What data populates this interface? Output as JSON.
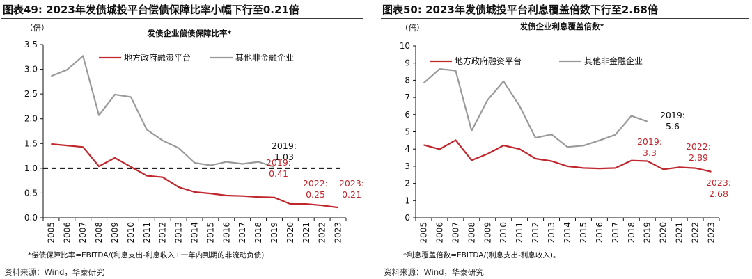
{
  "left_panel": {
    "figure_title": "图表49:  2023年发债城投平台偿债保障比率小幅下行至0.21倍",
    "footnote": "*偿债保障比率=EBITDA/(利息支出-利息收入+一年内到期的非流动负债)",
    "source": "资料来源：Wind，华泰研究"
  },
  "right_panel": {
    "figure_title": "图表50:  2023年发债城投平台利息覆盖倍数下行至2.68倍",
    "footnote": "*利息覆盖倍数=EBITDA/(利息支出-利息收入)。",
    "source": "资料来源：Wind，华泰研究"
  },
  "colors": {
    "red": "#c0272d",
    "gray": "#9a9a9a",
    "axis": "#111111",
    "dashed": "#000000"
  },
  "chart_data": [
    {
      "type": "line",
      "title": "发债企业偿债保障比率*",
      "unit_label": "（倍）",
      "x": [
        "2005",
        "2006",
        "2007",
        "2008",
        "2009",
        "2010",
        "2011",
        "2012",
        "2013",
        "2014",
        "2015",
        "2016",
        "2017",
        "2018",
        "2019",
        "2020",
        "2021",
        "2022",
        "2023"
      ],
      "ylim": [
        0,
        3.5
      ],
      "yticks": [
        0,
        0.5,
        1.0,
        1.5,
        2.0,
        2.5,
        3.0,
        3.5
      ],
      "ytick_labels": [
        "0.0",
        "0.5",
        "1.0",
        "1.5",
        "2.0",
        "2.5",
        "3.0",
        "3.5"
      ],
      "grid": false,
      "legend_position": "top",
      "series": [
        {
          "name": "地方政府融资平台",
          "color": "#c0272d",
          "values": [
            1.49,
            1.46,
            1.43,
            1.04,
            1.21,
            1.03,
            0.85,
            0.82,
            0.62,
            0.52,
            0.49,
            0.45,
            0.44,
            0.42,
            0.41,
            0.28,
            0.28,
            0.25,
            0.21
          ]
        },
        {
          "name": "其他非金融企业",
          "color": "#9a9a9a",
          "values": [
            2.86,
            2.99,
            3.27,
            2.07,
            2.49,
            2.44,
            1.78,
            1.56,
            1.41,
            1.11,
            1.06,
            1.13,
            1.09,
            1.13,
            1.03,
            null,
            null,
            null,
            null
          ]
        }
      ],
      "reference_line": {
        "y": 1.0,
        "style": "dashed"
      },
      "annotations": [
        {
          "lines": [
            "2019:",
            "1.03"
          ],
          "color": "#111111",
          "x": "2019",
          "y": 1.03
        },
        {
          "lines": [
            "2019:",
            "0.41"
          ],
          "color": "#c0272d",
          "x": "2019",
          "y": 0.41
        },
        {
          "lines": [
            "2022:",
            "0.25"
          ],
          "color": "#c0272d",
          "x": "2022",
          "y": 0.25
        },
        {
          "lines": [
            "2023:",
            "0.21"
          ],
          "color": "#c0272d",
          "x": "2023",
          "y": 0.21
        }
      ]
    },
    {
      "type": "line",
      "title": "发债企业利息覆盖倍数*",
      "unit_label": "（倍）",
      "x": [
        "2005",
        "2006",
        "2007",
        "2008",
        "2009",
        "2010",
        "2011",
        "2012",
        "2013",
        "2014",
        "2015",
        "2016",
        "2017",
        "2018",
        "2019",
        "2020",
        "2021",
        "2022",
        "2023"
      ],
      "ylim": [
        0,
        10
      ],
      "yticks": [
        0,
        1,
        2,
        3,
        4,
        5,
        6,
        7,
        8,
        9,
        10
      ],
      "ytick_labels": [
        "0",
        "1",
        "2",
        "3",
        "4",
        "5",
        "6",
        "7",
        "8",
        "9",
        "10"
      ],
      "grid": false,
      "legend_position": "top",
      "series": [
        {
          "name": "地方政府融资平台",
          "color": "#c0272d",
          "values": [
            4.24,
            3.99,
            4.52,
            3.35,
            3.72,
            4.21,
            4.0,
            3.44,
            3.3,
            3.0,
            2.9,
            2.87,
            2.9,
            3.33,
            3.3,
            2.82,
            2.94,
            2.89,
            2.68
          ]
        },
        {
          "name": "其他非金融企业",
          "color": "#9a9a9a",
          "values": [
            7.84,
            8.66,
            8.56,
            5.06,
            6.86,
            7.94,
            6.5,
            4.65,
            4.85,
            4.12,
            4.2,
            4.5,
            4.83,
            5.93,
            5.6,
            null,
            null,
            null,
            null
          ]
        }
      ],
      "annotations": [
        {
          "lines": [
            "2019:",
            "5.6"
          ],
          "color": "#111111",
          "x": "2019",
          "y": 5.6
        },
        {
          "lines": [
            "2019:",
            "3.3"
          ],
          "color": "#c0272d",
          "x": "2019",
          "y": 3.3
        },
        {
          "lines": [
            "2022:",
            "2.89"
          ],
          "color": "#c0272d",
          "x": "2022",
          "y": 2.89
        },
        {
          "lines": [
            "2023:",
            "2.68"
          ],
          "color": "#c0272d",
          "x": "2023",
          "y": 2.68
        }
      ]
    }
  ]
}
